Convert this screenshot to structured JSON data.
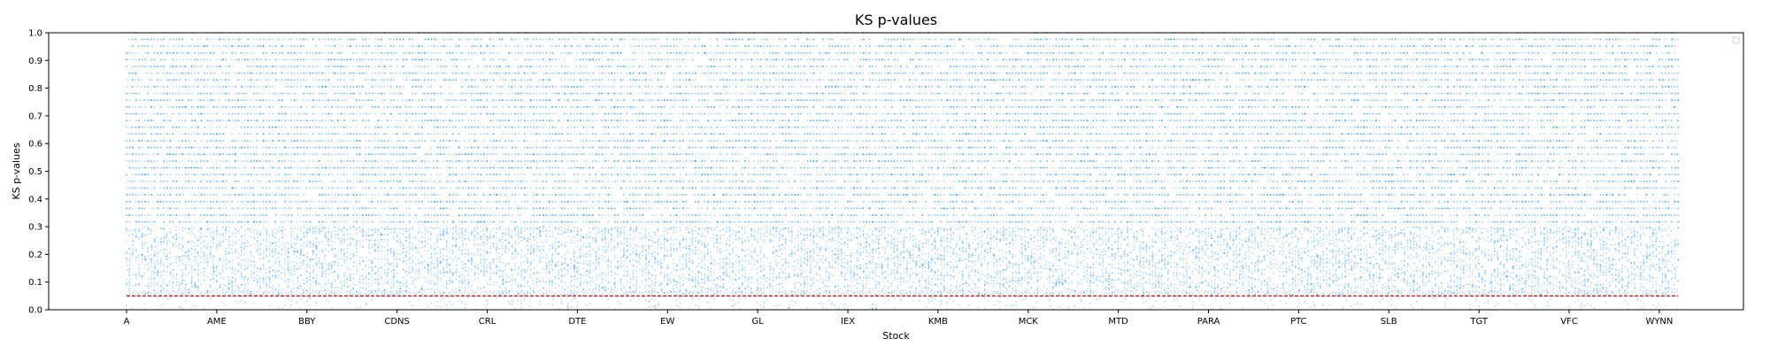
{
  "chart_data": {
    "type": "scatter",
    "title": "KS p-values",
    "xlabel": "Stock",
    "ylabel": "KS p-values",
    "xtick_labels": [
      "A",
      "AME",
      "BBY",
      "CDNS",
      "CRL",
      "DTE",
      "EW",
      "GL",
      "IEX",
      "KMB",
      "MCK",
      "MTD",
      "PARA",
      "PTC",
      "SLB",
      "TGT",
      "VFC",
      "WYNN"
    ],
    "stock_count": 500,
    "tick_every": 29,
    "samples_per_stock": 70,
    "ylim": [
      0,
      1.0
    ],
    "yticks": [
      0.0,
      0.1,
      0.2,
      0.3,
      0.4,
      0.5,
      0.6,
      0.7,
      0.8,
      0.9,
      1.0
    ],
    "point_color": "#1f8fe8",
    "point_opacity": 0.35,
    "threshold": {
      "value": 0.05,
      "color": "#e00000",
      "style": "dashed"
    },
    "legend": {
      "placement": "top-right",
      "entries": []
    },
    "grid": false,
    "distribution": "Approximately uniform on [0,1]; p-values cluster on discrete levels (multiples of ~0.024) above ~0.3, becoming sparser and more continuous below 0.3; very few points below 0.05."
  }
}
